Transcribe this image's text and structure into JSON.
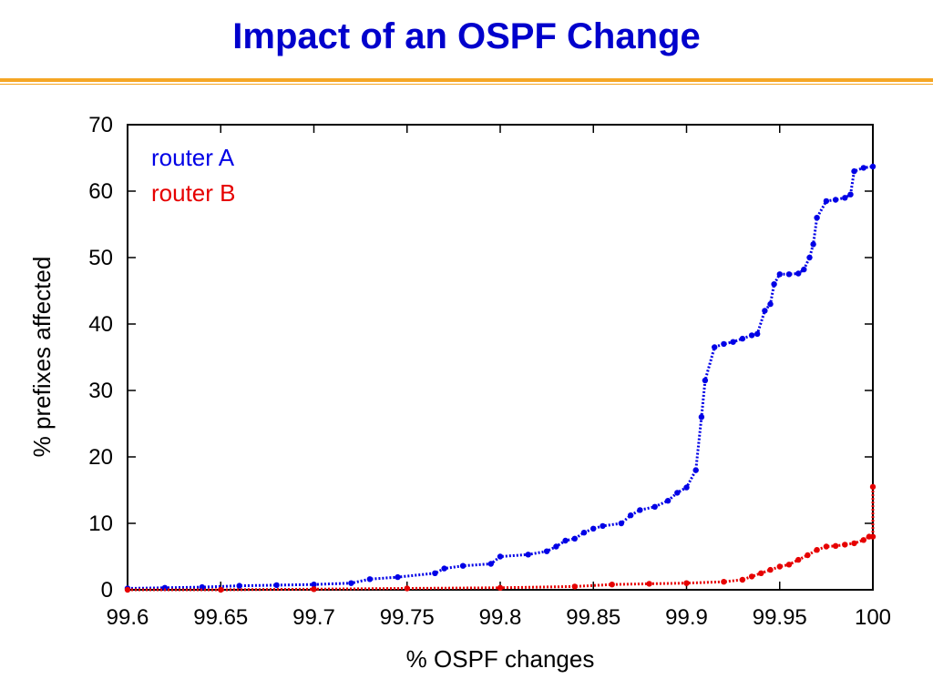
{
  "slide": {
    "title": "Impact of an OSPF Change"
  },
  "colors": {
    "title": "#0000cc",
    "rule": "#f5a623",
    "router_a": "#0000e6",
    "router_b": "#e60000"
  },
  "chart_data": {
    "type": "line",
    "title": "",
    "xlabel": "% OSPF changes",
    "ylabel": "% prefixes affected",
    "xlim": [
      99.6,
      100
    ],
    "ylim": [
      0,
      70
    ],
    "xticks": [
      99.6,
      99.65,
      99.7,
      99.75,
      99.8,
      99.85,
      99.9,
      99.95,
      100
    ],
    "xtick_labels": [
      "99.6",
      "99.65",
      "99.7",
      "99.75",
      "99.8",
      "99.85",
      "99.9",
      "99.95",
      "100"
    ],
    "yticks": [
      0,
      10,
      20,
      30,
      40,
      50,
      60,
      70
    ],
    "ytick_labels": [
      "0",
      "10",
      "20",
      "30",
      "40",
      "50",
      "60",
      "70"
    ],
    "grid": false,
    "legend_position": "top-left",
    "series": [
      {
        "name": "router A",
        "color": "#0000e6",
        "x": [
          99.6,
          99.62,
          99.64,
          99.66,
          99.68,
          99.7,
          99.72,
          99.73,
          99.745,
          99.765,
          99.77,
          99.78,
          99.795,
          99.8,
          99.815,
          99.825,
          99.83,
          99.835,
          99.84,
          99.845,
          99.85,
          99.855,
          99.865,
          99.87,
          99.875,
          99.883,
          99.89,
          99.895,
          99.9,
          99.905,
          99.908,
          99.91,
          99.915,
          99.92,
          99.925,
          99.93,
          99.935,
          99.938,
          99.942,
          99.945,
          99.947,
          99.95,
          99.955,
          99.96,
          99.963,
          99.966,
          99.968,
          99.97,
          99.975,
          99.98,
          99.985,
          99.988,
          99.99,
          99.995,
          100
        ],
        "y": [
          0.2,
          0.3,
          0.4,
          0.6,
          0.7,
          0.8,
          1.0,
          1.6,
          1.9,
          2.5,
          3.2,
          3.6,
          3.9,
          5.0,
          5.3,
          5.8,
          6.5,
          7.4,
          7.7,
          8.6,
          9.2,
          9.6,
          10.0,
          11.2,
          12.0,
          12.5,
          13.4,
          14.6,
          15.4,
          18.0,
          26.0,
          31.5,
          36.5,
          37.0,
          37.3,
          37.8,
          38.3,
          38.5,
          42.0,
          43.0,
          46.0,
          47.5,
          47.5,
          47.6,
          48.2,
          50.0,
          52.0,
          56.0,
          58.5,
          58.7,
          59.0,
          59.5,
          63.0,
          63.5,
          63.7
        ]
      },
      {
        "name": "router B",
        "color": "#e60000",
        "x": [
          99.6,
          99.65,
          99.7,
          99.75,
          99.8,
          99.84,
          99.86,
          99.88,
          99.9,
          99.92,
          99.93,
          99.935,
          99.94,
          99.945,
          99.95,
          99.955,
          99.96,
          99.965,
          99.97,
          99.975,
          99.98,
          99.985,
          99.99,
          99.995,
          99.998,
          100,
          100
        ],
        "y": [
          0.0,
          0.0,
          0.1,
          0.2,
          0.3,
          0.5,
          0.8,
          0.9,
          1.0,
          1.2,
          1.5,
          2.0,
          2.5,
          3.0,
          3.5,
          3.8,
          4.5,
          5.2,
          6.0,
          6.5,
          6.6,
          6.8,
          7.0,
          7.5,
          8.0,
          8.0,
          15.5
        ]
      }
    ]
  }
}
